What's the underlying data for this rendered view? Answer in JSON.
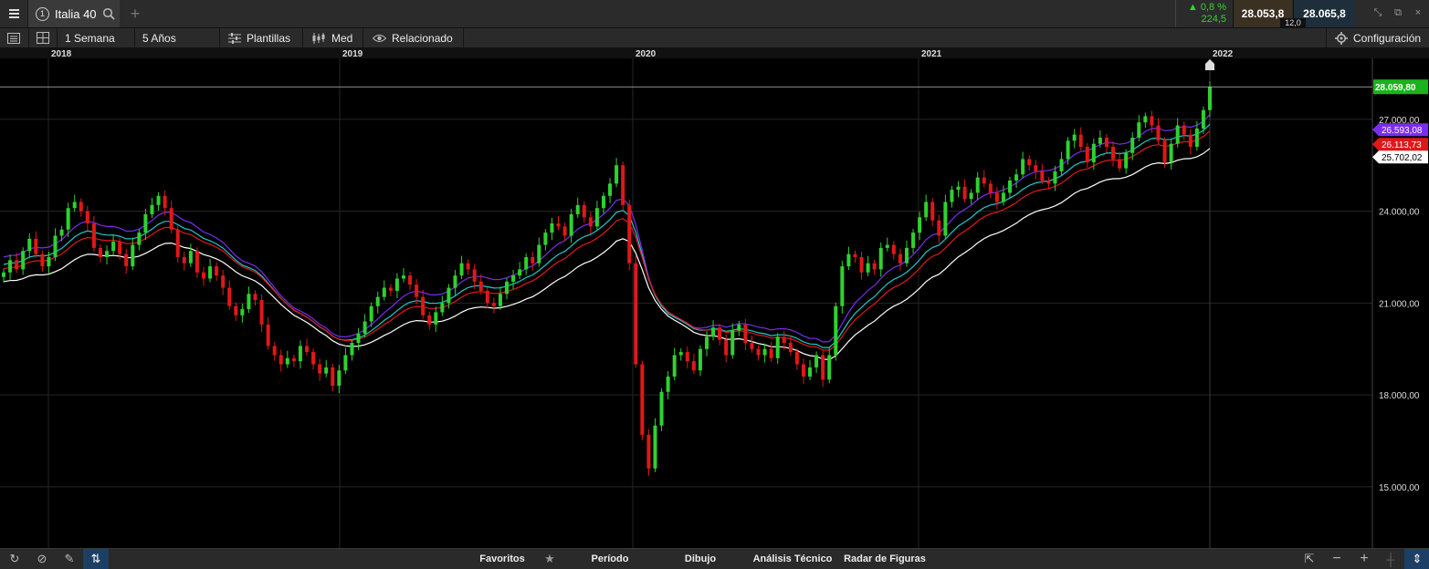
{
  "instrument": {
    "tab_number": "1",
    "name": "Italia 40"
  },
  "quote": {
    "change_pct": "0,8 %",
    "change_abs": "224,5",
    "sell": "28.053,8",
    "buy": "28.065,8",
    "spread": "12,0",
    "up_color": "#39d12f"
  },
  "toolbar": {
    "interval": "1 Semana",
    "range": "5 Años",
    "templates": "Plantillas",
    "average": "Med",
    "related": "Relacionado",
    "settings": "Configuración"
  },
  "bottombar": {
    "favorites": "Favoritos",
    "period": "Período",
    "drawing": "Dibujo",
    "technical": "Análisis Técnico",
    "patterns": "Radar de Figuras"
  },
  "icons": [
    "menu-icon",
    "search-icon",
    "plus-icon",
    "list-icon",
    "layout-icon",
    "sliders-icon",
    "candles-icon",
    "eye-icon",
    "gear-icon",
    "reset-icon",
    "cancel-icon",
    "pencil-icon",
    "sort-icon",
    "star-icon",
    "zoom-in-icon",
    "zoom-out-icon",
    "crosshair-icon",
    "fit-icon",
    "shrink-icon",
    "popout-icon",
    "close-icon",
    "minimize-icon"
  ],
  "chart_data": {
    "type": "candlestick",
    "x_labels": [
      "2018",
      "2019",
      "2020",
      "2021",
      "2022"
    ],
    "y_ticks": [
      "27.000,00",
      "24.000,00",
      "21.000,00",
      "18.000,00",
      "15.000,00"
    ],
    "ylim": [
      13300,
      28900
    ],
    "current_price": {
      "label": "28.059,80",
      "value": 28059.8,
      "color": "#1bb31b"
    },
    "indicators": [
      {
        "label": "26.593,08",
        "value": 26593,
        "color": "#7a2df0"
      },
      {
        "label": "26.113,73",
        "value": 26114,
        "color": "#e01818"
      },
      {
        "label": "25.702,02",
        "value": 25702,
        "color": "#ffffff"
      }
    ],
    "colors": {
      "up": "#2fd12f",
      "down": "#e01818",
      "ma1": "#7a2df0",
      "ma2": "#1ec9c9",
      "ma3": "#e01818",
      "ma4": "#ffffff"
    },
    "candles_weekly_close": [
      22000,
      22400,
      22100,
      22700,
      23100,
      22600,
      22200,
      22500,
      23200,
      23400,
      24100,
      24300,
      24000,
      23600,
      22800,
      22500,
      22700,
      23000,
      22600,
      22200,
      22900,
      23300,
      23900,
      24200,
      24500,
      24100,
      23400,
      22500,
      22300,
      22700,
      22000,
      21800,
      22200,
      21900,
      21500,
      20900,
      20600,
      20800,
      21300,
      21100,
      20300,
      19600,
      19300,
      19000,
      19200,
      19100,
      19600,
      19400,
      19000,
      18700,
      18900,
      18300,
      18800,
      19300,
      19700,
      20000,
      20400,
      20900,
      21200,
      21500,
      21400,
      21800,
      21900,
      21600,
      21200,
      20600,
      20300,
      20700,
      21000,
      21500,
      21900,
      22300,
      22100,
      21700,
      21400,
      21000,
      20900,
      21300,
      21700,
      21900,
      22100,
      22500,
      22300,
      22900,
      23300,
      23600,
      23500,
      23200,
      23900,
      24200,
      23800,
      23500,
      24100,
      24500,
      24900,
      25500,
      24200,
      22300,
      19000,
      16700,
      15600,
      17000,
      18100,
      18600,
      19300,
      19400,
      19100,
      18800,
      19500,
      19900,
      20200,
      19800,
      19300,
      20100,
      20300,
      19700,
      19500,
      19300,
      19500,
      19200,
      19900,
      19700,
      19400,
      19000,
      18600,
      18900,
      19300,
      18500,
      19300,
      20900,
      22200,
      22600,
      22500,
      22000,
      22300,
      22100,
      22800,
      22900,
      22600,
      22300,
      22800,
      23300,
      23800,
      24300,
      23700,
      23200,
      24300,
      24700,
      24800,
      24400,
      24600,
      25100,
      24900,
      24600,
      24300,
      24600,
      25000,
      25200,
      25700,
      25500,
      25300,
      25000,
      24900,
      25300,
      25700,
      26300,
      26500,
      26100,
      25600,
      26200,
      26400,
      26100,
      25700,
      25400,
      25900,
      26400,
      26900,
      27100,
      26800,
      26300,
      25600,
      26200,
      26800,
      26500,
      26100,
      26700,
      27300,
      28060
    ]
  }
}
